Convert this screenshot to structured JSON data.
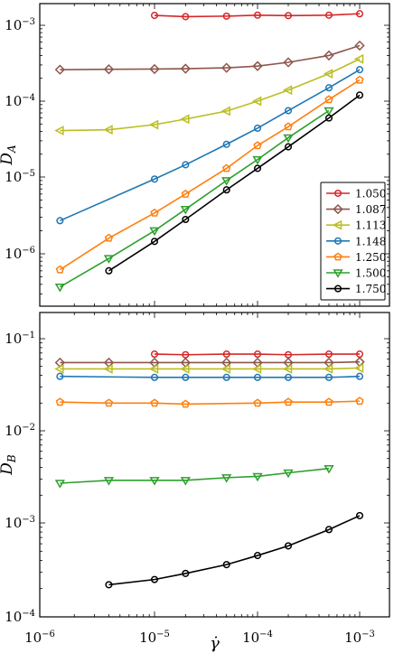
{
  "chart_data": [
    {
      "type": "line",
      "ylabel": "D_A",
      "xlabel": "",
      "xscale": "log",
      "yscale": "log",
      "xlim": [
        1e-06,
        0.001
      ],
      "ylim": [
        2e-07,
        0.002
      ],
      "x_ticks": [
        {
          "value": 1e-06,
          "label": ""
        },
        {
          "value": 1e-05,
          "label": ""
        },
        {
          "value": 0.0001,
          "label": ""
        },
        {
          "value": 0.001,
          "label": ""
        }
      ],
      "y_ticks": [
        {
          "value": 1e-06,
          "label": "10^-6"
        },
        {
          "value": 1e-05,
          "label": "10^-5"
        },
        {
          "value": 0.0001,
          "label": "10^-4"
        },
        {
          "value": 0.001,
          "label": "10^-3"
        }
      ],
      "legend_position": "lower-right",
      "series": [
        {
          "name": "1.050",
          "color": "#d62728",
          "marker": "circle",
          "points": [
            [
              1e-05,
              0.00135
            ],
            [
              2e-05,
              0.0013
            ],
            [
              5e-05,
              0.00132
            ],
            [
              0.0001,
              0.00136
            ],
            [
              0.0002,
              0.00134
            ],
            [
              0.0005,
              0.00136
            ],
            [
              0.001,
              0.00142
            ]
          ]
        },
        {
          "name": "1.087",
          "color": "#8c564b",
          "marker": "diamond",
          "points": [
            [
              1.5e-06,
              0.00026
            ],
            [
              4e-06,
              0.000263
            ],
            [
              1e-05,
              0.000265
            ],
            [
              2e-05,
              0.000268
            ],
            [
              5e-05,
              0.000275
            ],
            [
              0.0001,
              0.00029
            ],
            [
              0.0002,
              0.000325
            ],
            [
              0.0005,
              0.0004
            ],
            [
              0.001,
              0.00054
            ]
          ]
        },
        {
          "name": "1.113",
          "color": "#bcbd22",
          "marker": "triangle-left",
          "points": [
            [
              1.5e-06,
              4.1e-05
            ],
            [
              4e-06,
              4.2e-05
            ],
            [
              1e-05,
              4.9e-05
            ],
            [
              2e-05,
              5.8e-05
            ],
            [
              5e-05,
              7.4e-05
            ],
            [
              0.0001,
              0.0001
            ],
            [
              0.0002,
              0.00014
            ],
            [
              0.0005,
              0.00023
            ],
            [
              0.001,
              0.00036
            ]
          ]
        },
        {
          "name": "1.148",
          "color": "#1f77b4",
          "marker": "circle",
          "points": [
            [
              1.5e-06,
              2.7e-06
            ],
            [
              1e-05,
              9.4e-06
            ],
            [
              2e-05,
              1.45e-05
            ],
            [
              5e-05,
              2.7e-05
            ],
            [
              0.0001,
              4.4e-05
            ],
            [
              0.0002,
              7.5e-05
            ],
            [
              0.0005,
              0.00015
            ],
            [
              0.001,
              0.00026
            ]
          ]
        },
        {
          "name": "1.250",
          "color": "#ff7f0e",
          "marker": "pentagon",
          "points": [
            [
              1.5e-06,
              6.2e-07
            ],
            [
              4e-06,
              1.6e-06
            ],
            [
              1e-05,
              3.4e-06
            ],
            [
              2e-05,
              6e-06
            ],
            [
              5e-05,
              1.3e-05
            ],
            [
              0.0001,
              2.6e-05
            ],
            [
              0.0002,
              4.6e-05
            ],
            [
              0.0005,
              0.000105
            ],
            [
              0.001,
              0.00019
            ]
          ]
        },
        {
          "name": "1.500",
          "color": "#2ca02c",
          "marker": "triangle-down",
          "points": [
            [
              1.5e-06,
              3.7e-07
            ],
            [
              4e-06,
              8.7e-07
            ],
            [
              1e-05,
              2e-06
            ],
            [
              2e-05,
              3.8e-06
            ],
            [
              5e-05,
              9e-06
            ],
            [
              0.0001,
              1.7e-05
            ],
            [
              0.0002,
              3.3e-05
            ],
            [
              0.0005,
              7.5e-05
            ]
          ]
        },
        {
          "name": "1.750",
          "color": "#000000",
          "marker": "circle",
          "points": [
            [
              4e-06,
              6e-07
            ],
            [
              1e-05,
              1.45e-06
            ],
            [
              2e-05,
              2.8e-06
            ],
            [
              5e-05,
              6.8e-06
            ],
            [
              0.0001,
              1.3e-05
            ],
            [
              0.0002,
              2.5e-05
            ],
            [
              0.0005,
              6e-05
            ],
            [
              0.001,
              0.00012
            ]
          ]
        }
      ]
    },
    {
      "type": "line",
      "ylabel": "D_B",
      "xlabel": "γ̇",
      "xscale": "log",
      "yscale": "log",
      "xlim": [
        1e-06,
        0.001
      ],
      "ylim": [
        0.0001,
        0.2
      ],
      "x_ticks": [
        {
          "value": 1e-06,
          "label": "10^-6"
        },
        {
          "value": 1e-05,
          "label": "10^-5"
        },
        {
          "value": 0.0001,
          "label": "10^-4"
        },
        {
          "value": 0.001,
          "label": "10^-3"
        }
      ],
      "y_ticks": [
        {
          "value": 0.0001,
          "label": "10^-4"
        },
        {
          "value": 0.001,
          "label": "10^-3"
        },
        {
          "value": 0.01,
          "label": "10^-2"
        },
        {
          "value": 0.1,
          "label": "10^-1"
        }
      ],
      "series": [
        {
          "name": "1.050",
          "color": "#d62728",
          "marker": "circle",
          "points": [
            [
              1e-05,
              0.068
            ],
            [
              2e-05,
              0.067
            ],
            [
              5e-05,
              0.068
            ],
            [
              0.0001,
              0.068
            ],
            [
              0.0002,
              0.067
            ],
            [
              0.0005,
              0.068
            ],
            [
              0.001,
              0.068
            ]
          ]
        },
        {
          "name": "1.087",
          "color": "#8c564b",
          "marker": "diamond",
          "points": [
            [
              1.5e-06,
              0.055
            ],
            [
              4e-06,
              0.055
            ],
            [
              1e-05,
              0.055
            ],
            [
              2e-05,
              0.055
            ],
            [
              5e-05,
              0.055
            ],
            [
              0.0001,
              0.055
            ],
            [
              0.0002,
              0.055
            ],
            [
              0.0005,
              0.055
            ],
            [
              0.001,
              0.056
            ]
          ]
        },
        {
          "name": "1.113",
          "color": "#bcbd22",
          "marker": "triangle-left",
          "points": [
            [
              1.5e-06,
              0.047
            ],
            [
              4e-06,
              0.047
            ],
            [
              1e-05,
              0.047
            ],
            [
              2e-05,
              0.047
            ],
            [
              5e-05,
              0.047
            ],
            [
              0.0001,
              0.047
            ],
            [
              0.0002,
              0.047
            ],
            [
              0.0005,
              0.047
            ],
            [
              0.001,
              0.048
            ]
          ]
        },
        {
          "name": "1.148",
          "color": "#1f77b4",
          "marker": "circle",
          "points": [
            [
              1.5e-06,
              0.039
            ],
            [
              1e-05,
              0.038
            ],
            [
              2e-05,
              0.038
            ],
            [
              5e-05,
              0.038
            ],
            [
              0.0001,
              0.038
            ],
            [
              0.0002,
              0.038
            ],
            [
              0.0005,
              0.038
            ],
            [
              0.001,
              0.039
            ]
          ]
        },
        {
          "name": "1.250",
          "color": "#ff7f0e",
          "marker": "pentagon",
          "points": [
            [
              1.5e-06,
              0.0205
            ],
            [
              4e-06,
              0.02
            ],
            [
              1e-05,
              0.02
            ],
            [
              2e-05,
              0.0195
            ],
            [
              0.0001,
              0.02
            ],
            [
              0.0002,
              0.0205
            ],
            [
              0.0005,
              0.0205
            ],
            [
              0.001,
              0.021
            ]
          ]
        },
        {
          "name": "1.500",
          "color": "#2ca02c",
          "marker": "triangle-down",
          "points": [
            [
              1.5e-06,
              0.0027
            ],
            [
              4e-06,
              0.0029
            ],
            [
              1e-05,
              0.0029
            ],
            [
              2e-05,
              0.0029
            ],
            [
              5e-05,
              0.0031
            ],
            [
              0.0001,
              0.0032
            ],
            [
              0.0002,
              0.0035
            ],
            [
              0.0005,
              0.0039
            ]
          ]
        },
        {
          "name": "1.750",
          "color": "#000000",
          "marker": "circle",
          "points": [
            [
              4e-06,
              0.00022
            ],
            [
              1e-05,
              0.00025
            ],
            [
              2e-05,
              0.00029
            ],
            [
              5e-05,
              0.00036
            ],
            [
              0.0001,
              0.00045
            ],
            [
              0.0002,
              0.00057
            ],
            [
              0.0005,
              0.00085
            ],
            [
              0.001,
              0.0012
            ]
          ]
        }
      ]
    }
  ]
}
